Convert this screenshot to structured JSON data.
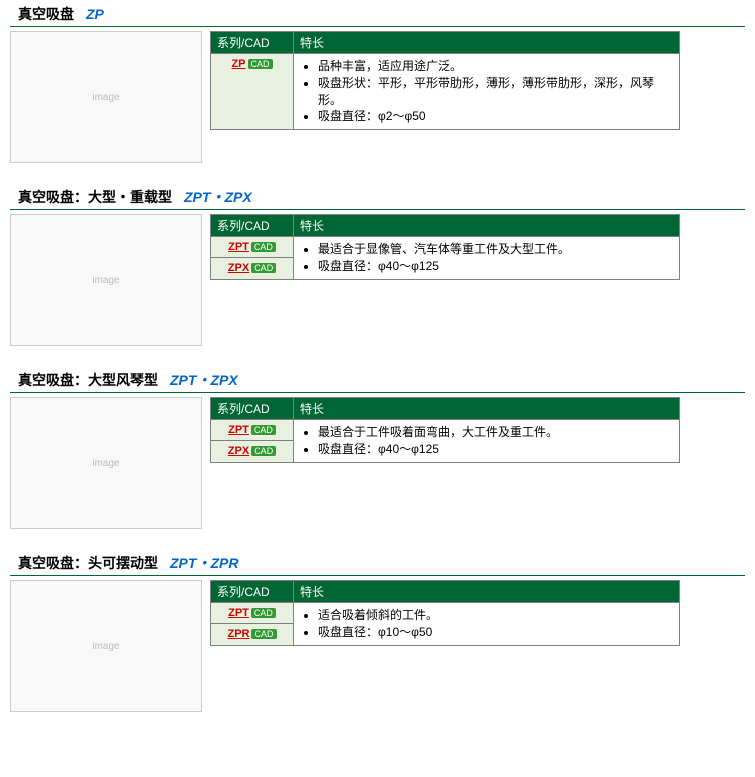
{
  "sections": [
    {
      "title_cn": "真空吸盘",
      "title_code": "ZP",
      "header_series": "系列/CAD",
      "header_feature": "特长",
      "rows": [
        {
          "series": "ZP",
          "features": [
            "品种丰富，适应用途广泛。",
            "吸盘形状：平形，平形带肋形，薄形，薄形带肋形，深形，风琴形。",
            "吸盘直径：φ2～φ50"
          ]
        }
      ]
    },
    {
      "title_cn": "真空吸盘：大型・重载型",
      "title_code": "ZPT・ZPX",
      "header_series": "系列/CAD",
      "header_feature": "特长",
      "rows": [
        {
          "series": "ZPT",
          "features": [
            "最适合于显像管、汽车体等重工件及大型工件。",
            "吸盘直径：φ40～φ125"
          ]
        },
        {
          "series": "ZPX",
          "features": null
        }
      ]
    },
    {
      "title_cn": "真空吸盘：大型风琴型",
      "title_code": "ZPT・ZPX",
      "header_series": "系列/CAD",
      "header_feature": "特长",
      "rows": [
        {
          "series": "ZPT",
          "features": [
            "最适合于工件吸着面弯曲，大工件及重工件。",
            "吸盘直径：φ40～φ125"
          ]
        },
        {
          "series": "ZPX",
          "features": null
        }
      ]
    },
    {
      "title_cn": "真空吸盘：头可摆动型",
      "title_code": "ZPT・ZPR",
      "header_series": "系列/CAD",
      "header_feature": "特长",
      "rows": [
        {
          "series": "ZPT",
          "features": [
            "适合吸着倾斜的工件。",
            "吸盘直径：φ10～φ50"
          ]
        },
        {
          "series": "ZPR",
          "features": null
        }
      ]
    }
  ],
  "cad_label": "CAD",
  "colors": {
    "header_green": "#006633",
    "link_red": "#cc0000",
    "title_blue": "#0066cc",
    "row_bg": "#e8f0e0",
    "badge_green": "#339933",
    "border_gray": "#808080"
  }
}
